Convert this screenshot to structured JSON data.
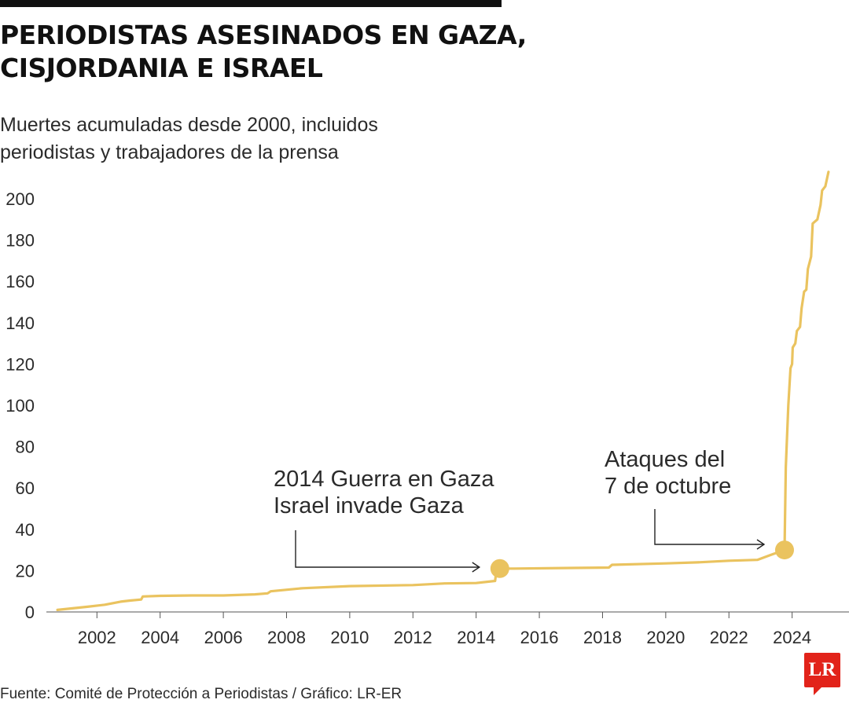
{
  "header": {
    "title_line1": "PERIODISTAS ASESINADOS EN GAZA,",
    "title_line2": "CISJORDANIA E ISRAEL",
    "subtitle_line1": "Muertes acumuladas desde 2000, incluidos",
    "subtitle_line2": "periodistas y trabajadores de la prensa"
  },
  "colors": {
    "line": "#EAC35F",
    "text": "#2b2b2b",
    "brand": "#e2231a"
  },
  "chart_data": {
    "type": "line",
    "title": "PERIODISTAS ASESINADOS EN GAZA, CISJORDANIA E ISRAEL",
    "subtitle": "Muertes acumuladas desde 2000, incluidos periodistas y trabajadores de la prensa",
    "xlabel": "",
    "ylabel": "",
    "xlim": [
      2000.4,
      2025.8
    ],
    "ylim": [
      0,
      200
    ],
    "grid": false,
    "x_ticks": [
      2002,
      2004,
      2006,
      2008,
      2010,
      2012,
      2014,
      2016,
      2018,
      2020,
      2022,
      2024
    ],
    "x_tick_labels": [
      "2002",
      "2004",
      "2006",
      "2008",
      "2010",
      "2012",
      "2014",
      "2016",
      "2018",
      "2020",
      "2022",
      "2024"
    ],
    "y_ticks": [
      0,
      20,
      40,
      60,
      80,
      100,
      120,
      140,
      160,
      180,
      200
    ],
    "y_tick_labels": [
      "0",
      "20",
      "40",
      "60",
      "80",
      "100",
      "120",
      "140",
      "160",
      "180",
      "200"
    ],
    "series": [
      {
        "name": "Muertes acumuladas",
        "points": [
          [
            2000.75,
            1
          ],
          [
            2001.7,
            2.5
          ],
          [
            2002.25,
            3.5
          ],
          [
            2002.75,
            5
          ],
          [
            2003.05,
            5.5
          ],
          [
            2003.4,
            6
          ],
          [
            2003.45,
            7.5
          ],
          [
            2004.0,
            7.8
          ],
          [
            2005.0,
            8
          ],
          [
            2006.0,
            8
          ],
          [
            2007.0,
            8.5
          ],
          [
            2007.4,
            9
          ],
          [
            2007.5,
            10
          ],
          [
            2008.5,
            11.5
          ],
          [
            2010.0,
            12.5
          ],
          [
            2012.0,
            13
          ],
          [
            2013.0,
            13.8
          ],
          [
            2014.0,
            14
          ],
          [
            2014.6,
            15
          ],
          [
            2014.65,
            21
          ],
          [
            2015.2,
            21
          ],
          [
            2017.0,
            21.3
          ],
          [
            2018.2,
            21.5
          ],
          [
            2018.3,
            22.8
          ],
          [
            2020.0,
            23.5
          ],
          [
            2021.0,
            24
          ],
          [
            2022.0,
            24.8
          ],
          [
            2022.9,
            25.2
          ],
          [
            2023.3,
            27.5
          ],
          [
            2023.76,
            30
          ],
          [
            2023.8,
            70
          ],
          [
            2023.88,
            100
          ],
          [
            2023.95,
            118
          ],
          [
            2024.0,
            120
          ],
          [
            2024.02,
            128
          ],
          [
            2024.1,
            130
          ],
          [
            2024.15,
            136
          ],
          [
            2024.25,
            138
          ],
          [
            2024.3,
            147
          ],
          [
            2024.38,
            155
          ],
          [
            2024.45,
            156
          ],
          [
            2024.5,
            166
          ],
          [
            2024.6,
            172
          ],
          [
            2024.65,
            188
          ],
          [
            2024.8,
            190
          ],
          [
            2024.9,
            197
          ],
          [
            2024.95,
            204
          ],
          [
            2025.05,
            206
          ],
          [
            2025.15,
            213
          ]
        ]
      }
    ],
    "highlight_points": [
      {
        "x": 2014.75,
        "y": 21
      },
      {
        "x": 2023.76,
        "y": 30
      }
    ],
    "annotations": [
      {
        "lines": [
          "2014 Guerra en Gaza",
          "Israel invade Gaza"
        ],
        "target_x": 2014.75,
        "target_y": 21
      },
      {
        "lines": [
          "Ataques del",
          "7 de octubre"
        ],
        "target_x": 2023.76,
        "target_y": 30
      }
    ]
  },
  "footer": {
    "source": "Fuente: Comité de Protección a Periodistas / Gráfico: LR-ER",
    "logo_text": "LR"
  }
}
